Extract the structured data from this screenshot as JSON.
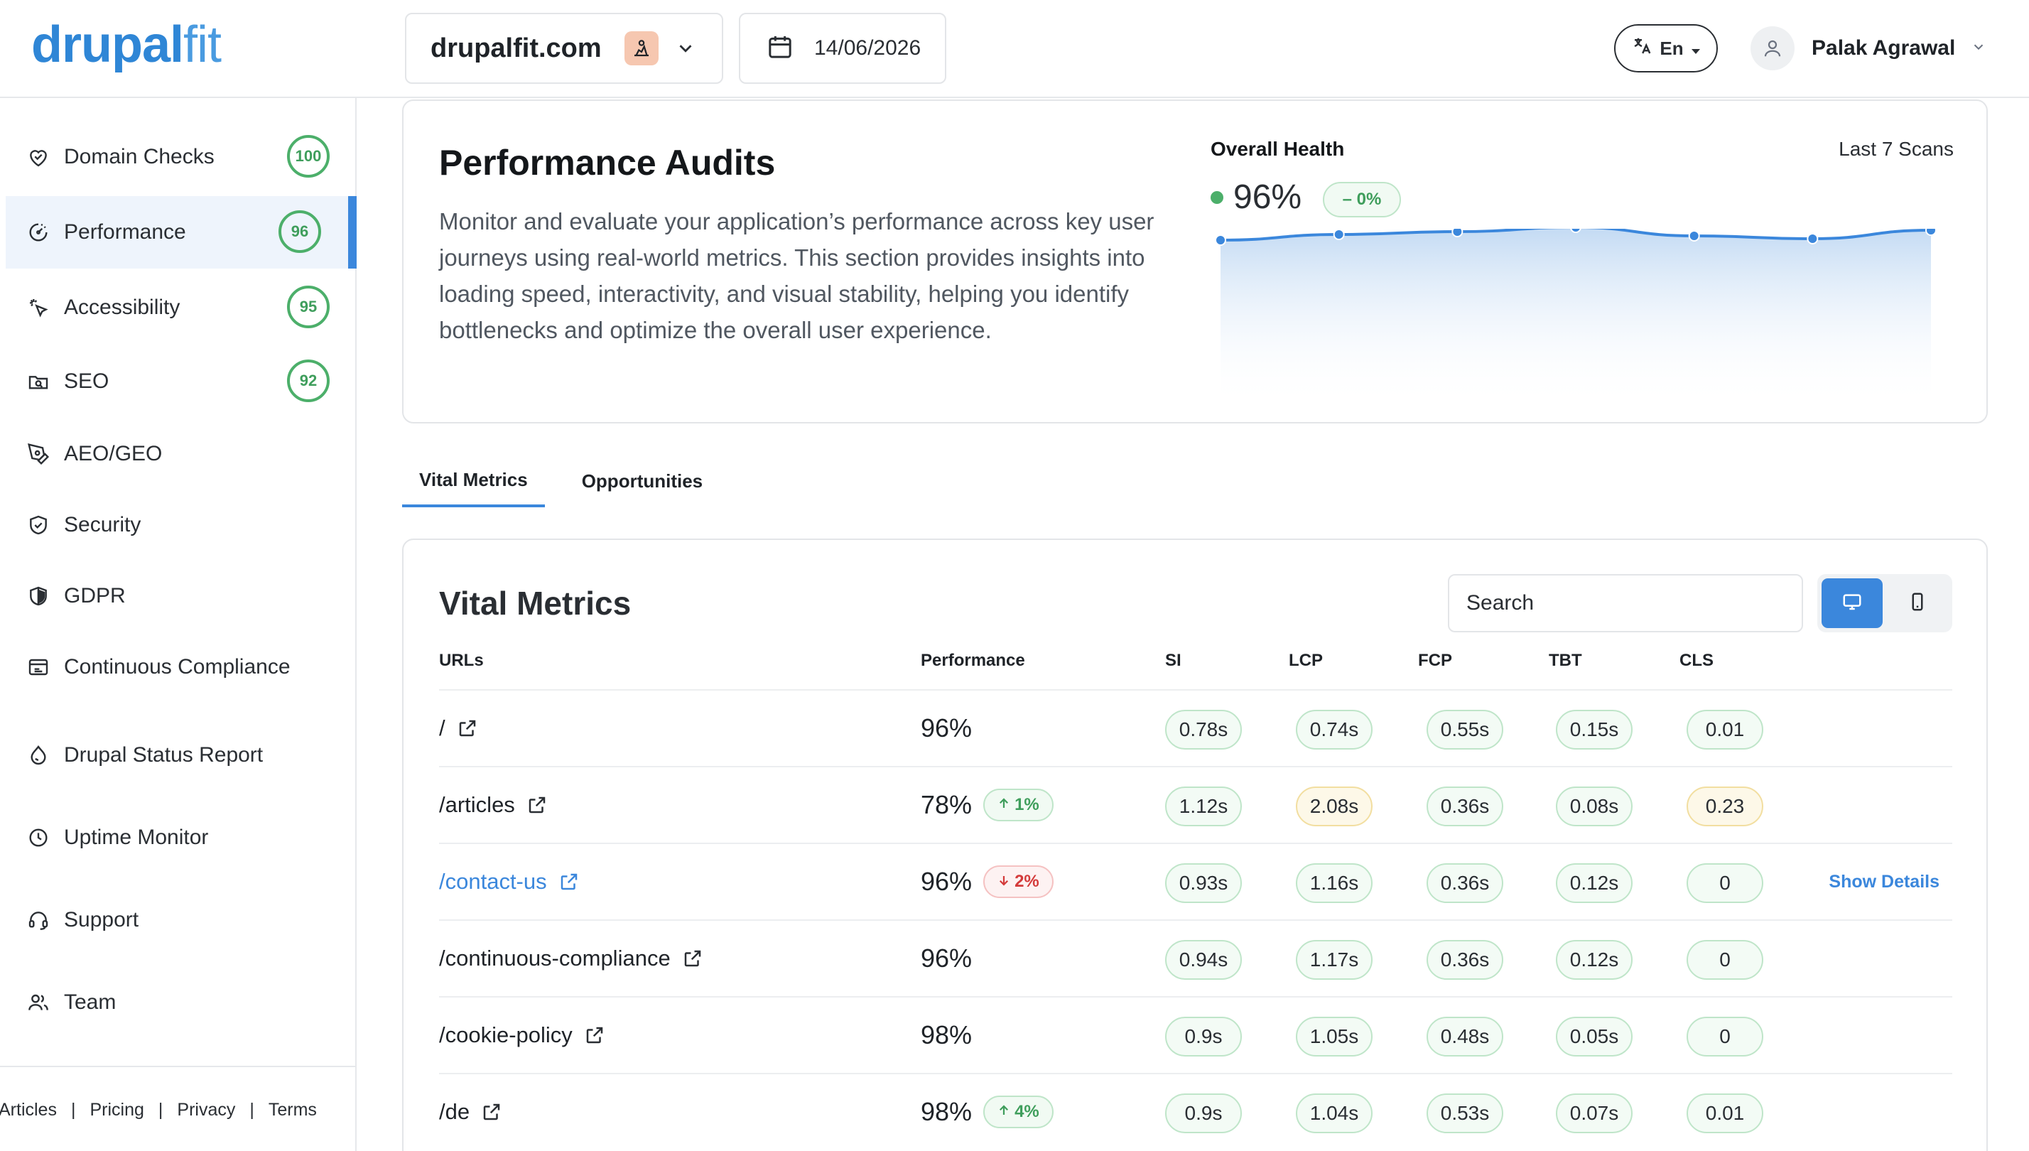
{
  "header": {
    "logo_bold": "drupal",
    "logo_light": "fit",
    "site": "drupalfit.com",
    "date": "14/06/2026",
    "language": "En",
    "user_name": "Palak Agrawal"
  },
  "sidebar": {
    "items": [
      {
        "label": "Domain Checks",
        "icon": "heart-shield-icon",
        "score": "100"
      },
      {
        "label": "Performance",
        "icon": "gauge-icon",
        "score": "96",
        "active": true
      },
      {
        "label": "Accessibility",
        "icon": "pointer-icon",
        "score": "95"
      },
      {
        "label": "SEO",
        "icon": "seo-folder-icon",
        "score": "92"
      },
      {
        "label": "AEO/GEO",
        "icon": "pen-tool-icon"
      },
      {
        "label": "Security",
        "icon": "shield-check-icon"
      },
      {
        "label": "GDPR",
        "icon": "shield-half-icon"
      },
      {
        "label": "Continuous Compliance",
        "icon": "calendar-check-icon"
      },
      {
        "label": "Drupal Status Report",
        "icon": "drop-icon"
      },
      {
        "label": "Uptime Monitor",
        "icon": "clock-icon"
      },
      {
        "label": "Support",
        "icon": "headset-icon"
      },
      {
        "label": "Team",
        "icon": "users-icon"
      }
    ],
    "footer_links": [
      "Articles",
      "Pricing",
      "Privacy",
      "Terms"
    ]
  },
  "audit": {
    "title": "Performance Audits",
    "description": "Monitor and evaluate your application’s performance across key user journeys using real-world metrics. This section provides insights into loading speed, interactivity, and visual stability, helping you identify bottlenecks and optimize the overall user experience.",
    "health_title": "Overall Health",
    "health_scans": "Last 7 Scans",
    "health_value": "96%",
    "health_delta": "– 0%",
    "chart_data": {
      "type": "area",
      "values": [
        95.2,
        95.6,
        95.8,
        96.1,
        95.5,
        95.3,
        95.9
      ],
      "ylim": [
        90,
        100
      ]
    }
  },
  "tabs": [
    {
      "label": "Vital Metrics",
      "active": true
    },
    {
      "label": "Opportunities"
    }
  ],
  "vital": {
    "title": "Vital Metrics",
    "search_placeholder": "Search",
    "columns": {
      "urls": "URLs",
      "performance": "Performance",
      "si": "SI",
      "lcp": "LCP",
      "fcp": "FCP",
      "tbt": "TBT",
      "cls": "CLS"
    },
    "show_details": "Show Details",
    "rows": [
      {
        "url": "/",
        "perf": "96%",
        "change": "",
        "dir": "",
        "si": "0.78s",
        "lcp": "0.74s",
        "fcp": "0.55s",
        "tbt": "0.15s",
        "cls": "0.01",
        "lcp_warn": false,
        "cls_warn": false
      },
      {
        "url": "/articles",
        "perf": "78%",
        "change": "1%",
        "dir": "up",
        "si": "1.12s",
        "lcp": "2.08s",
        "fcp": "0.36s",
        "tbt": "0.08s",
        "cls": "0.23",
        "lcp_warn": true,
        "cls_warn": true
      },
      {
        "url": "/contact-us",
        "perf": "96%",
        "change": "2%",
        "dir": "down",
        "si": "0.93s",
        "lcp": "1.16s",
        "fcp": "0.36s",
        "tbt": "0.12s",
        "cls": "0",
        "lcp_warn": false,
        "cls_warn": false,
        "highlight": true
      },
      {
        "url": "/continuous-compliance",
        "perf": "96%",
        "change": "",
        "dir": "",
        "si": "0.94s",
        "lcp": "1.17s",
        "fcp": "0.36s",
        "tbt": "0.12s",
        "cls": "0",
        "lcp_warn": false,
        "cls_warn": false
      },
      {
        "url": "/cookie-policy",
        "perf": "98%",
        "change": "",
        "dir": "",
        "si": "0.9s",
        "lcp": "1.05s",
        "fcp": "0.48s",
        "tbt": "0.05s",
        "cls": "0",
        "lcp_warn": false,
        "cls_warn": false
      },
      {
        "url": "/de",
        "perf": "98%",
        "change": "4%",
        "dir": "up",
        "si": "0.9s",
        "lcp": "1.04s",
        "fcp": "0.53s",
        "tbt": "0.07s",
        "cls": "0.01",
        "lcp_warn": false,
        "cls_warn": false
      }
    ]
  },
  "colors": {
    "accent": "#3b87dc",
    "good": "#4caf6a",
    "warn": "#f2dea0",
    "bad": "#d43b3b"
  }
}
